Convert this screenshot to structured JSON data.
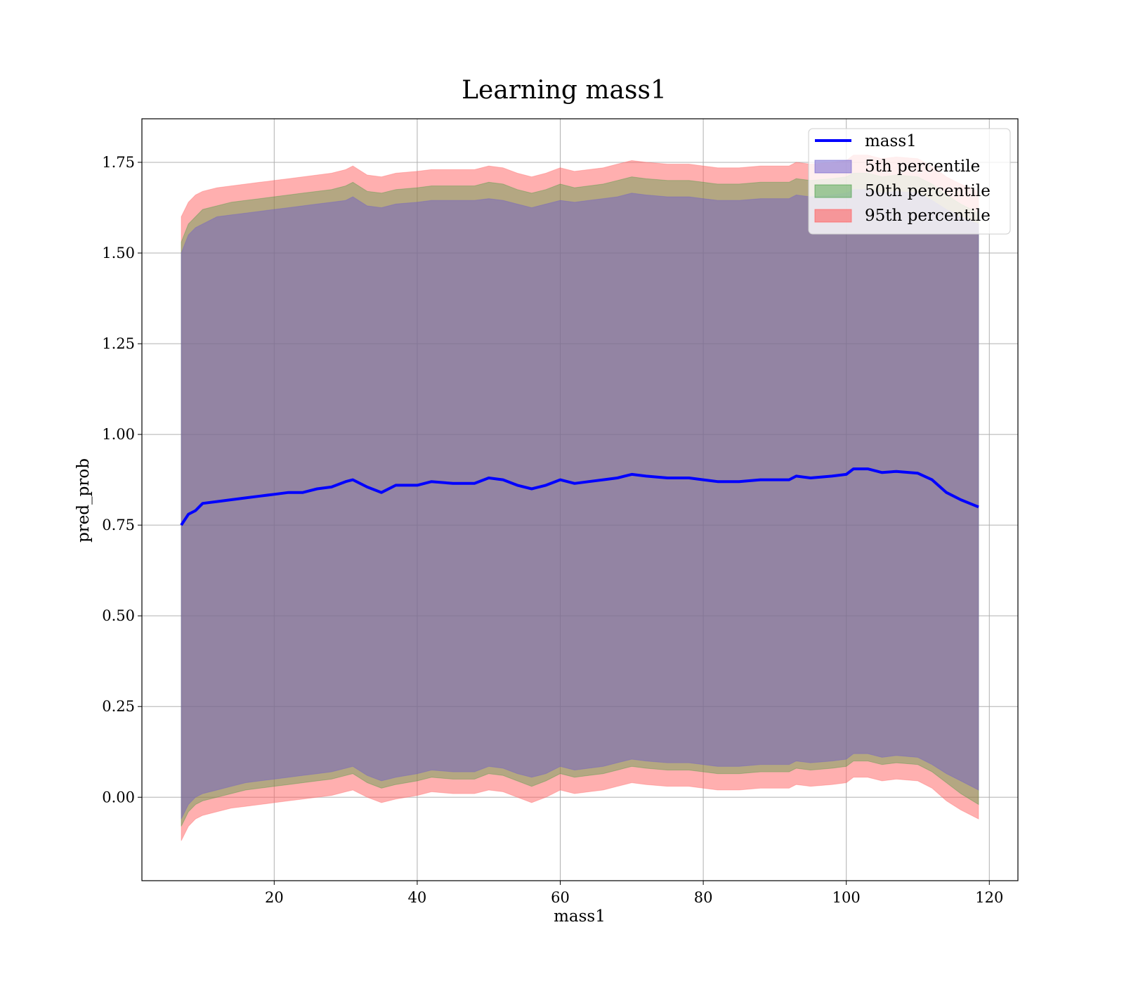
{
  "chart_data": {
    "type": "line",
    "title": "Learning mass1",
    "xlabel": "mass1",
    "ylabel": "pred_prob",
    "xlim": [
      1.5,
      124.0
    ],
    "ylim": [
      -0.23,
      1.87
    ],
    "x_ticks": [
      "20",
      "40",
      "60",
      "80",
      "100",
      "120"
    ],
    "y_ticks": [
      "0.00",
      "0.25",
      "0.50",
      "0.75",
      "1.00",
      "1.25",
      "1.50",
      "1.75"
    ],
    "grid": true,
    "legend_position": "top-right",
    "x": [
      7,
      8,
      9,
      10,
      12,
      14,
      16,
      18,
      20,
      22,
      24,
      26,
      28,
      30,
      31,
      33,
      35,
      37,
      40,
      42,
      45,
      48,
      50,
      52,
      54,
      56,
      58,
      60,
      62,
      64,
      66,
      68,
      70,
      72,
      75,
      78,
      80,
      82,
      85,
      88,
      90,
      92,
      93,
      95,
      98,
      100,
      101,
      103,
      105,
      107,
      110,
      112,
      114,
      116,
      118.5
    ],
    "series": [
      {
        "name": "mass1",
        "role": "line",
        "color": "#0000ff",
        "values": [
          0.75,
          0.78,
          0.79,
          0.81,
          0.815,
          0.82,
          0.825,
          0.83,
          0.835,
          0.84,
          0.84,
          0.85,
          0.855,
          0.87,
          0.875,
          0.855,
          0.84,
          0.86,
          0.86,
          0.87,
          0.865,
          0.865,
          0.88,
          0.875,
          0.86,
          0.85,
          0.86,
          0.875,
          0.865,
          0.87,
          0.875,
          0.88,
          0.89,
          0.885,
          0.88,
          0.88,
          0.875,
          0.87,
          0.87,
          0.875,
          0.875,
          0.875,
          0.885,
          0.88,
          0.885,
          0.89,
          0.905,
          0.905,
          0.895,
          0.898,
          0.893,
          0.875,
          0.84,
          0.82,
          0.8
        ]
      },
      {
        "name": "5th percentile",
        "role": "band",
        "color": "#6a5acd",
        "lower": [
          -0.06,
          -0.02,
          0.0,
          0.01,
          0.02,
          0.03,
          0.04,
          0.045,
          0.05,
          0.055,
          0.06,
          0.065,
          0.07,
          0.08,
          0.085,
          0.06,
          0.045,
          0.055,
          0.065,
          0.075,
          0.07,
          0.07,
          0.085,
          0.08,
          0.065,
          0.055,
          0.065,
          0.085,
          0.075,
          0.08,
          0.085,
          0.095,
          0.105,
          0.1,
          0.095,
          0.095,
          0.09,
          0.085,
          0.085,
          0.09,
          0.09,
          0.09,
          0.1,
          0.095,
          0.1,
          0.105,
          0.12,
          0.12,
          0.11,
          0.115,
          0.11,
          0.09,
          0.065,
          0.045,
          0.02
        ],
        "upper": [
          1.5,
          1.55,
          1.57,
          1.58,
          1.6,
          1.605,
          1.61,
          1.615,
          1.62,
          1.625,
          1.63,
          1.635,
          1.64,
          1.645,
          1.655,
          1.63,
          1.625,
          1.635,
          1.64,
          1.645,
          1.645,
          1.645,
          1.65,
          1.645,
          1.635,
          1.625,
          1.635,
          1.645,
          1.64,
          1.645,
          1.65,
          1.655,
          1.665,
          1.66,
          1.655,
          1.655,
          1.65,
          1.645,
          1.645,
          1.65,
          1.65,
          1.65,
          1.66,
          1.655,
          1.66,
          1.665,
          1.675,
          1.675,
          1.665,
          1.67,
          1.665,
          1.645,
          1.62,
          1.6,
          1.58
        ]
      },
      {
        "name": "50th percentile",
        "role": "band",
        "color": "#3a9a3a",
        "lower": [
          -0.08,
          -0.04,
          -0.02,
          -0.01,
          0.0,
          0.01,
          0.02,
          0.025,
          0.03,
          0.035,
          0.04,
          0.045,
          0.05,
          0.06,
          0.065,
          0.04,
          0.025,
          0.035,
          0.045,
          0.055,
          0.05,
          0.05,
          0.065,
          0.06,
          0.045,
          0.03,
          0.045,
          0.065,
          0.055,
          0.06,
          0.065,
          0.075,
          0.085,
          0.08,
          0.075,
          0.075,
          0.07,
          0.065,
          0.065,
          0.07,
          0.07,
          0.07,
          0.08,
          0.075,
          0.08,
          0.085,
          0.1,
          0.1,
          0.09,
          0.095,
          0.09,
          0.07,
          0.04,
          0.01,
          -0.02
        ],
        "upper": [
          1.53,
          1.58,
          1.6,
          1.62,
          1.63,
          1.64,
          1.645,
          1.65,
          1.655,
          1.66,
          1.665,
          1.67,
          1.675,
          1.685,
          1.695,
          1.67,
          1.665,
          1.675,
          1.68,
          1.685,
          1.685,
          1.685,
          1.695,
          1.69,
          1.675,
          1.665,
          1.675,
          1.69,
          1.68,
          1.685,
          1.69,
          1.7,
          1.71,
          1.705,
          1.7,
          1.7,
          1.695,
          1.69,
          1.69,
          1.695,
          1.695,
          1.695,
          1.705,
          1.7,
          1.705,
          1.71,
          1.72,
          1.72,
          1.71,
          1.715,
          1.71,
          1.69,
          1.66,
          1.635,
          1.61
        ]
      },
      {
        "name": "95th percentile",
        "role": "band",
        "color": "#ff6060",
        "lower": [
          -0.12,
          -0.08,
          -0.06,
          -0.05,
          -0.04,
          -0.03,
          -0.025,
          -0.02,
          -0.015,
          -0.01,
          -0.005,
          0.0,
          0.005,
          0.015,
          0.02,
          0.0,
          -0.015,
          -0.005,
          0.005,
          0.015,
          0.01,
          0.01,
          0.02,
          0.015,
          0.0,
          -0.015,
          0.0,
          0.02,
          0.01,
          0.015,
          0.02,
          0.03,
          0.04,
          0.035,
          0.03,
          0.03,
          0.025,
          0.02,
          0.02,
          0.025,
          0.025,
          0.025,
          0.035,
          0.03,
          0.035,
          0.04,
          0.055,
          0.055,
          0.045,
          0.05,
          0.045,
          0.025,
          -0.01,
          -0.035,
          -0.06
        ],
        "upper": [
          1.6,
          1.64,
          1.66,
          1.67,
          1.68,
          1.685,
          1.69,
          1.695,
          1.7,
          1.705,
          1.71,
          1.715,
          1.72,
          1.73,
          1.74,
          1.715,
          1.71,
          1.72,
          1.725,
          1.73,
          1.73,
          1.73,
          1.74,
          1.735,
          1.72,
          1.71,
          1.72,
          1.735,
          1.725,
          1.73,
          1.735,
          1.745,
          1.755,
          1.75,
          1.745,
          1.745,
          1.74,
          1.735,
          1.735,
          1.74,
          1.74,
          1.74,
          1.75,
          1.745,
          1.75,
          1.755,
          1.77,
          1.77,
          1.76,
          1.765,
          1.76,
          1.74,
          1.71,
          1.69,
          1.67
        ]
      }
    ]
  }
}
